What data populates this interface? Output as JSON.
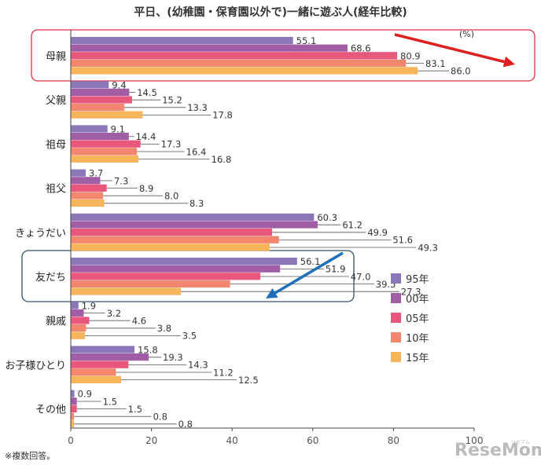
{
  "chart_data": {
    "type": "bar",
    "orientation": "horizontal",
    "title": "平日、(幼稚園・保育園以外で)一緒に遊ぶ人(経年比較)",
    "unit": "(%)",
    "categories": [
      "母親",
      "父親",
      "祖母",
      "祖父",
      "きょうだい",
      "友だち",
      "親戚",
      "お子様ひとり",
      "その他"
    ],
    "series": [
      {
        "name": "95年",
        "color": "#8a77b8",
        "values": [
          55.1,
          9.4,
          9.1,
          3.7,
          60.3,
          56.1,
          1.9,
          15.8,
          0.9
        ]
      },
      {
        "name": "00年",
        "color": "#a25ea4",
        "values": [
          68.6,
          14.5,
          14.4,
          7.3,
          61.2,
          51.9,
          3.2,
          19.3,
          1.5
        ]
      },
      {
        "name": "05年",
        "color": "#e8577c",
        "values": [
          80.9,
          15.2,
          17.3,
          8.9,
          49.9,
          47.0,
          4.6,
          14.3,
          1.5
        ]
      },
      {
        "name": "10年",
        "color": "#f2866e",
        "values": [
          83.1,
          13.3,
          16.4,
          8.0,
          51.6,
          39.5,
          3.8,
          11.2,
          0.8
        ]
      },
      {
        "name": "15年",
        "color": "#f8b45a",
        "values": [
          86.0,
          17.8,
          16.8,
          8.3,
          49.3,
          27.3,
          3.5,
          12.5,
          0.8
        ]
      }
    ],
    "value_labels": [
      [
        "55.1",
        "9.4",
        "9.1",
        "3.7",
        "60.3",
        "56.1",
        "1.9",
        "15.8",
        "0.9"
      ],
      [
        "68.6",
        "14.5",
        "14.4",
        "7.3",
        "61.2",
        "51.9",
        "3.2",
        "19.3",
        "1.5"
      ],
      [
        "80.9",
        "15.2",
        "17.3",
        "8.9",
        "49.9",
        "47.0",
        "4.6",
        "14.3",
        "1.5"
      ],
      [
        "83.1",
        "13.3",
        "16.4",
        "8.0",
        "51.6",
        "39.5",
        "3.8",
        "11.2",
        "0.8"
      ],
      [
        "86.0",
        "17.8",
        "16.8",
        "8.3",
        "49.3",
        "27.3",
        "3.5",
        "12.5",
        "0.8"
      ]
    ],
    "xlim": [
      0,
      100
    ],
    "xticks": [
      0,
      20,
      40,
      60,
      80,
      100
    ],
    "grid": false,
    "legend_position": "right",
    "highlighted_categories": [
      "母親",
      "友だち"
    ]
  },
  "note": "※複数回答。",
  "watermark": {
    "brand": "ReseMom",
    "small": "リセマム"
  },
  "colors": {
    "highlight_red": "#e03040",
    "highlight_navy": "#34506b",
    "arrow_red": "#e02020",
    "arrow_blue": "#1f70b8",
    "axis": "#444444"
  }
}
